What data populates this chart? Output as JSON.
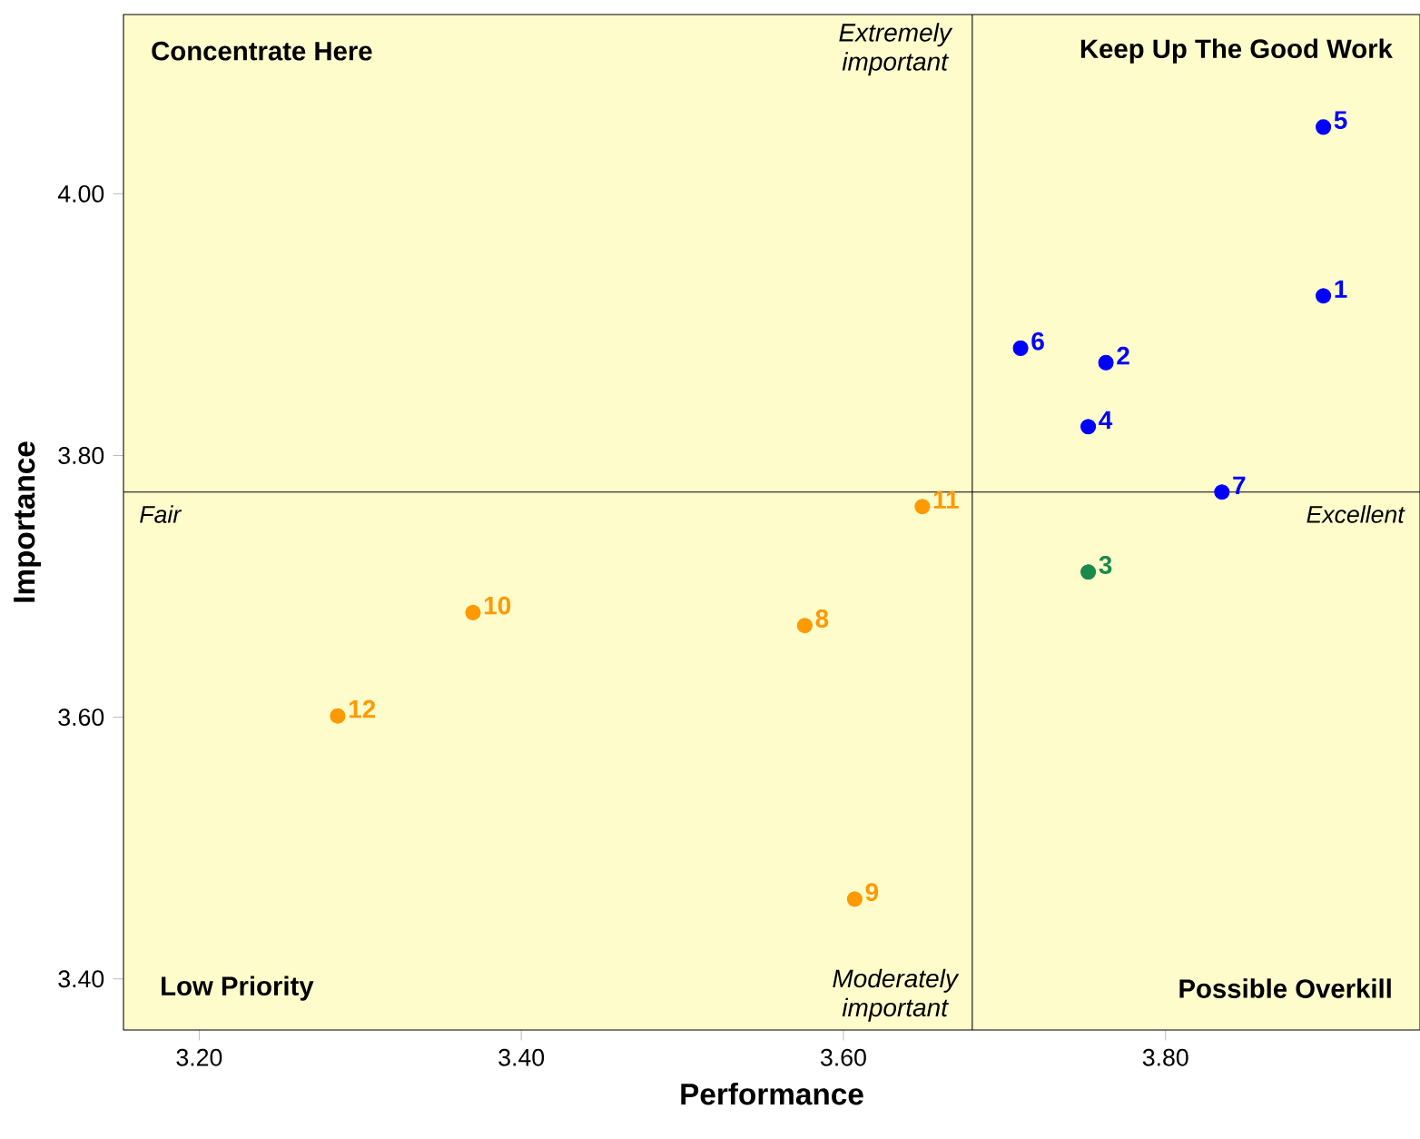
{
  "chart_data": {
    "type": "scatter",
    "xlabel": "Performance",
    "ylabel": "Importance",
    "xlim": [
      3.153,
      3.958
    ],
    "ylim": [
      3.361,
      4.137
    ],
    "xticks": [
      {
        "value": 3.2,
        "label": "3.20"
      },
      {
        "value": 3.4,
        "label": "3.40"
      },
      {
        "value": 3.6,
        "label": "3.60"
      },
      {
        "value": 3.8,
        "label": "3.80"
      }
    ],
    "yticks": [
      {
        "value": 3.4,
        "label": "3.40"
      },
      {
        "value": 3.6,
        "label": "3.60"
      },
      {
        "value": 3.8,
        "label": "3.80"
      },
      {
        "value": 4.0,
        "label": "4.00"
      }
    ],
    "series": [
      {
        "color": "#0000ff",
        "x": [
          3.898,
          3.763,
          3.752,
          3.898,
          3.71,
          3.835
        ],
        "values": [
          3.922,
          3.871,
          3.822,
          4.051,
          3.882,
          3.772
        ]
      },
      {
        "color": "#1a8a4a",
        "x": [
          3.752
        ],
        "values": [
          3.711
        ]
      },
      {
        "color": "#ff9900",
        "x": [
          3.576,
          3.607,
          3.37,
          3.649,
          3.286
        ],
        "values": [
          3.67,
          3.461,
          3.68,
          3.761,
          3.601
        ]
      }
    ],
    "ref_lines": [
      {
        "axis": "x",
        "value": 3.68,
        "color": "#000000"
      },
      {
        "axis": "y",
        "value": 3.772,
        "color": "#000000"
      }
    ],
    "annotations": [
      "Concentrate Here",
      "Keep Up The Good Work",
      "Low Priority",
      "Possible Overkill",
      "Extremely important",
      "Moderately important",
      "Fair",
      "Excellent",
      {
        "text": "1",
        "x": 3.898,
        "y": 3.922
      },
      {
        "text": "2",
        "x": 3.763,
        "y": 3.871
      },
      {
        "text": "3",
        "x": 3.752,
        "y": 3.711
      },
      {
        "text": "4",
        "x": 3.752,
        "y": 3.822
      },
      {
        "text": "5",
        "x": 3.898,
        "y": 4.051
      },
      {
        "text": "6",
        "x": 3.71,
        "y": 3.882
      },
      {
        "text": "7",
        "x": 3.835,
        "y": 3.772
      },
      {
        "text": "8",
        "x": 3.576,
        "y": 3.67
      },
      {
        "text": "9",
        "x": 3.607,
        "y": 3.461
      },
      {
        "text": "10",
        "x": 3.37,
        "y": 3.68
      },
      {
        "text": "11",
        "x": 3.649,
        "y": 3.761
      },
      {
        "text": "12",
        "x": 3.286,
        "y": 3.601
      }
    ],
    "marker": "circle",
    "grid": false
  }
}
